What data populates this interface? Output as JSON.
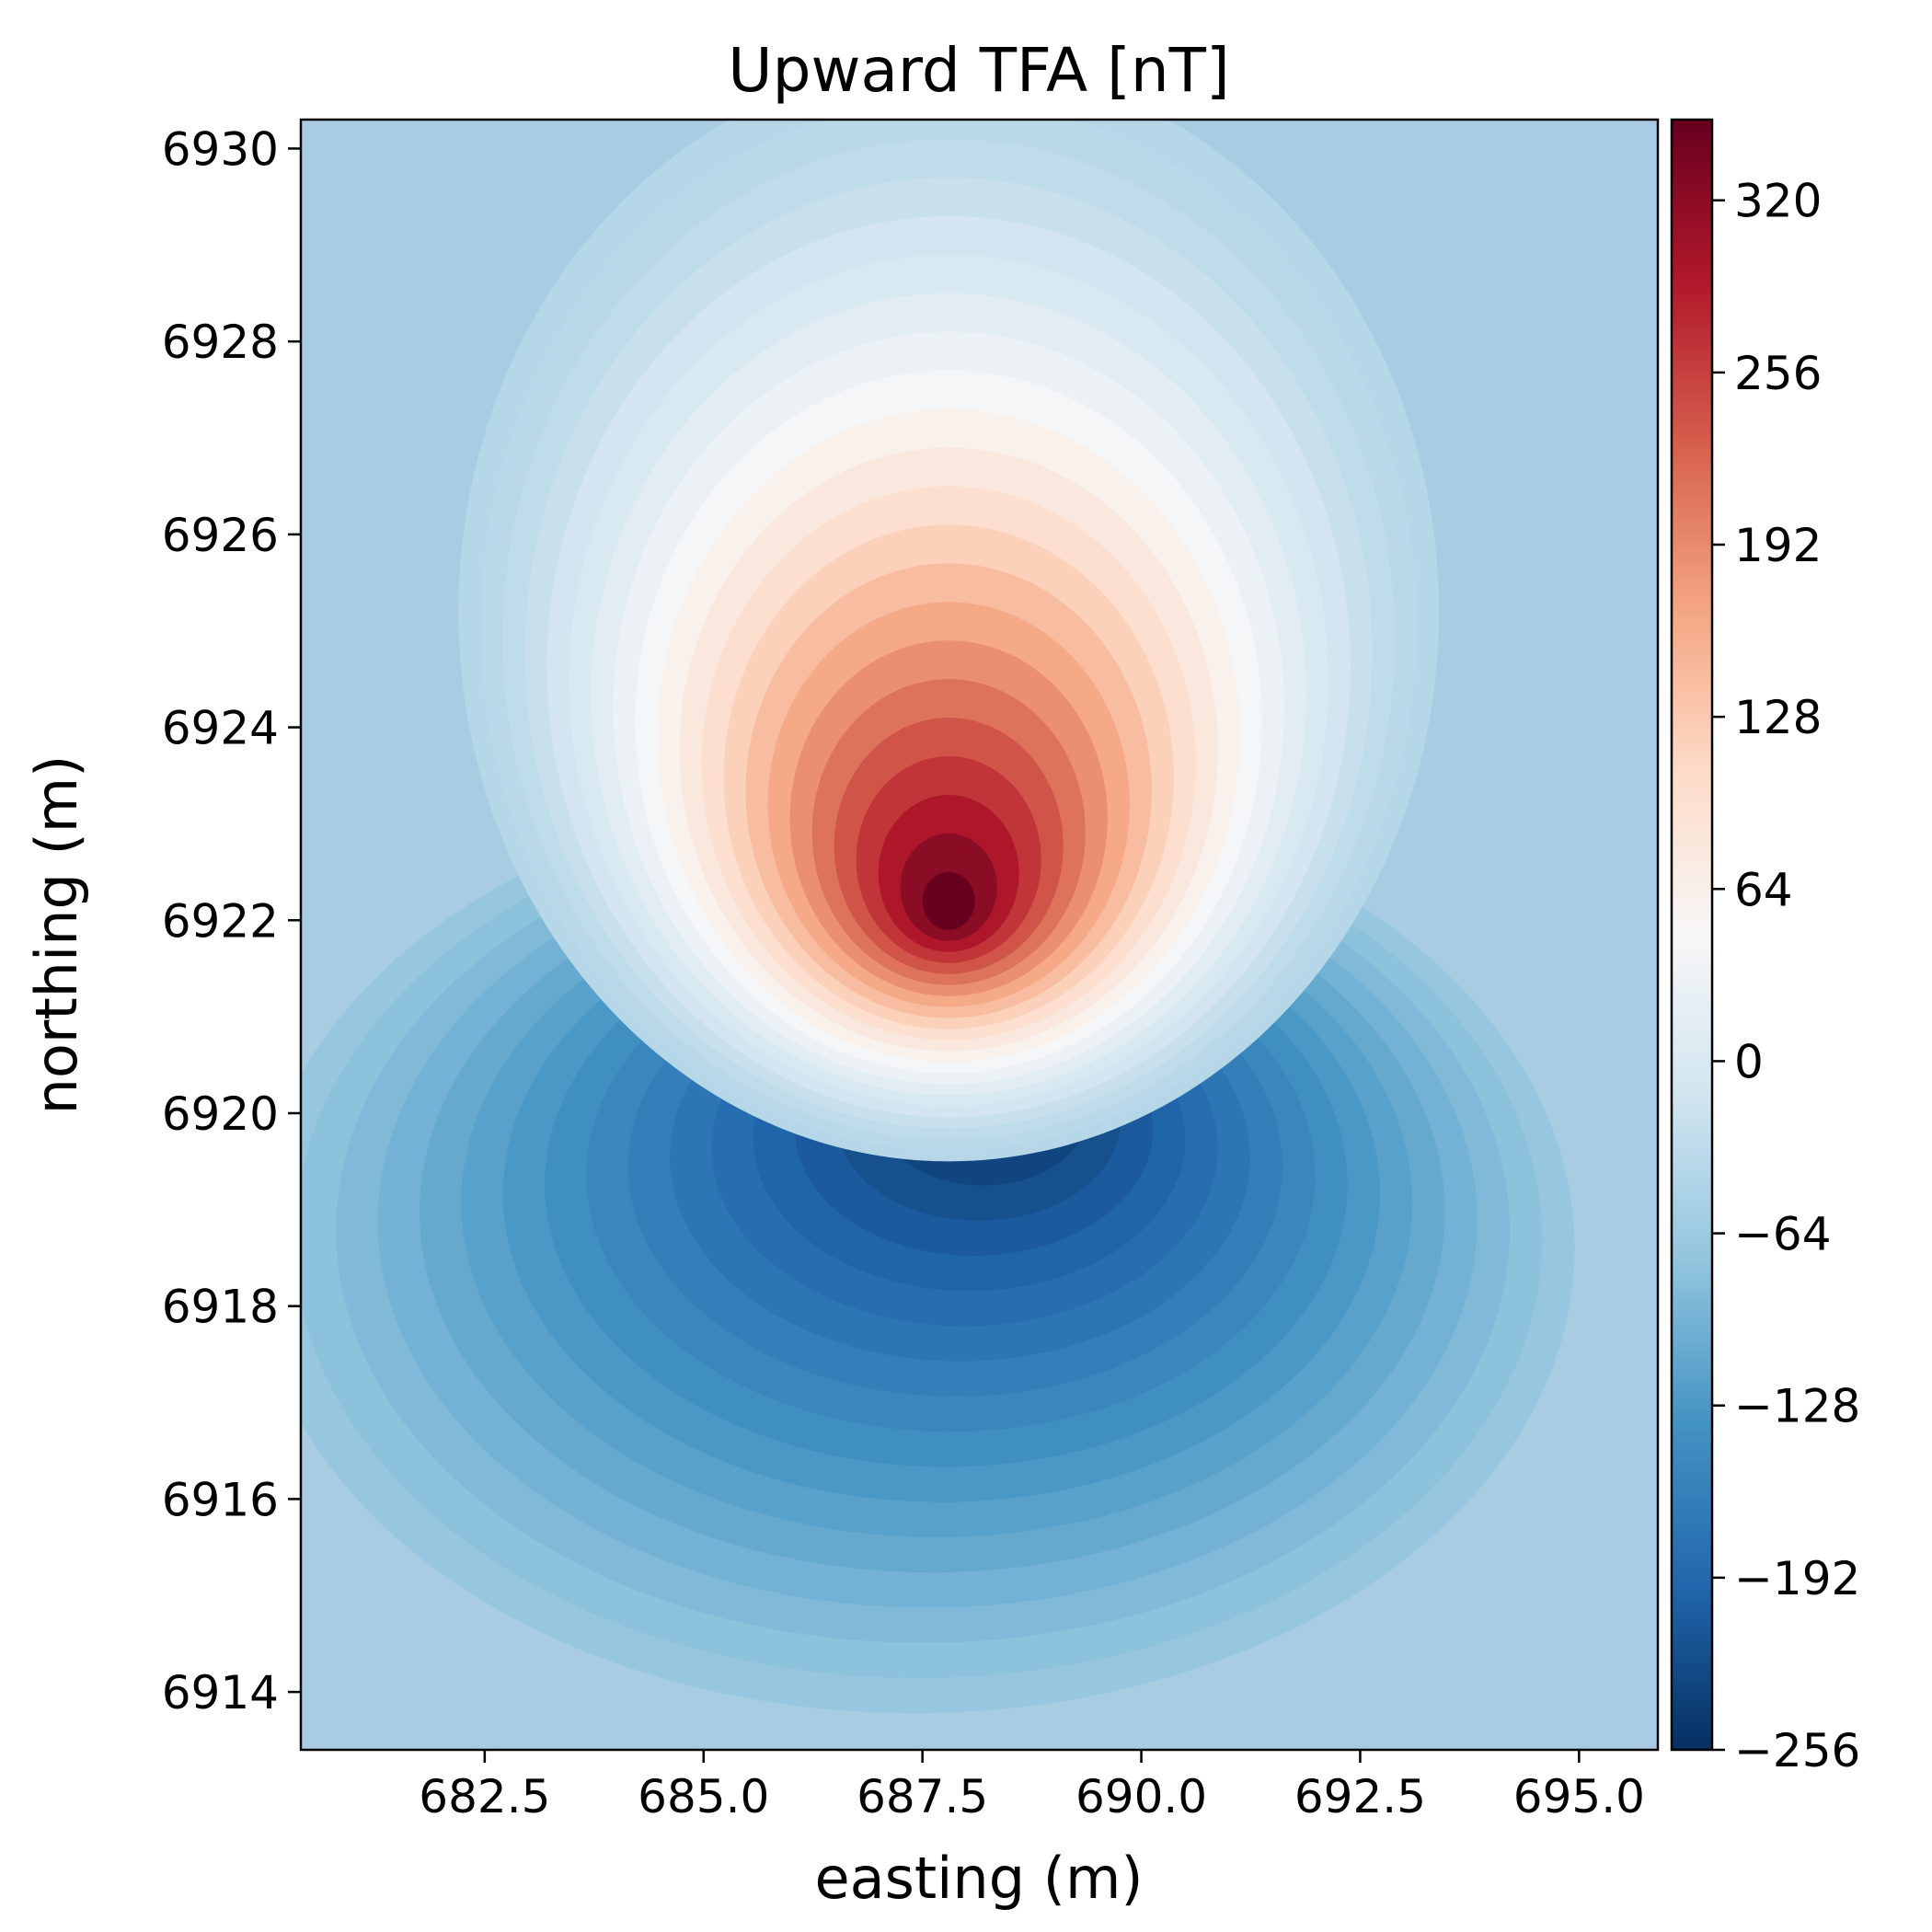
{
  "chart_data": {
    "type": "heatmap",
    "title": "Upward TFA [nT]",
    "xlabel": "easting (m)",
    "ylabel": "northing (m)",
    "xlim": [
      680.4,
      695.9
    ],
    "ylim": [
      6913.4,
      6930.3
    ],
    "x_ticks": [
      "682.5",
      "685.0",
      "687.5",
      "690.0",
      "692.5",
      "695.0"
    ],
    "y_ticks": [
      "6914",
      "6916",
      "6918",
      "6920",
      "6922",
      "6924",
      "6926",
      "6928",
      "6930"
    ],
    "colorbar": {
      "colormap": "RdBu_r",
      "range": [
        -256,
        350
      ],
      "ticks": [
        "320",
        "256",
        "192",
        "128",
        "64",
        "0",
        "−64",
        "−128",
        "−192",
        "−256"
      ]
    },
    "features": [
      {
        "kind": "maximum",
        "easting": 687.8,
        "northing": 6922.2,
        "value": 350
      },
      {
        "kind": "minimum",
        "easting": 688.3,
        "northing": 6920.2,
        "value": -256
      }
    ],
    "grid": false,
    "legend": "none"
  }
}
